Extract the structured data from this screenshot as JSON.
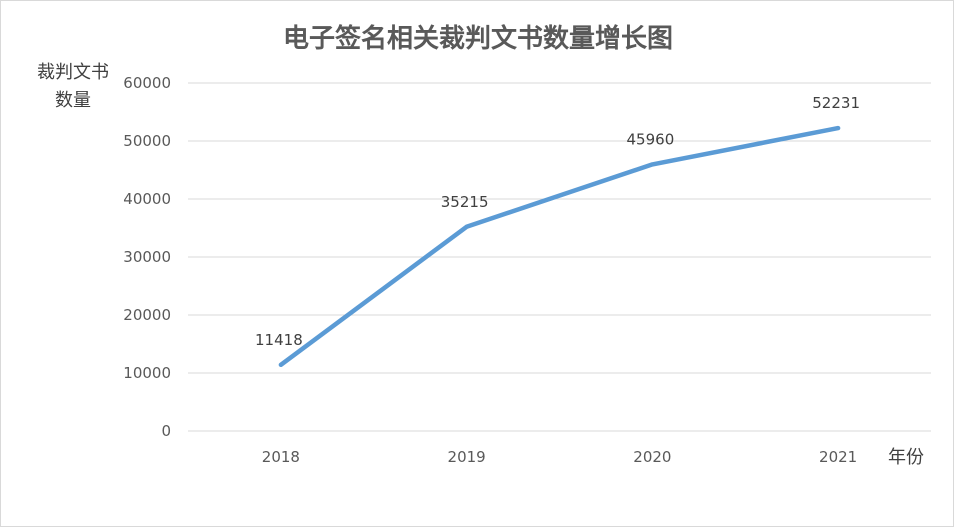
{
  "chart_data": {
    "type": "line",
    "title": "电子签名相关裁判文书数量增长图",
    "ylabel": "裁判文书\n数量",
    "xlabel": "年份",
    "categories": [
      "2018",
      "2019",
      "2020",
      "2021"
    ],
    "series": [
      {
        "values": [
          11418,
          35215,
          45960,
          52231
        ],
        "color": "#5b9bd5"
      }
    ],
    "data_labels": [
      "11418",
      "35215",
      "45960",
      "52231"
    ],
    "ylim": [
      0,
      60000
    ],
    "yticks": [
      0,
      10000,
      20000,
      30000,
      40000,
      50000,
      60000
    ],
    "grid": true,
    "gridline_color": "#d9d9d9",
    "legend": "none"
  }
}
